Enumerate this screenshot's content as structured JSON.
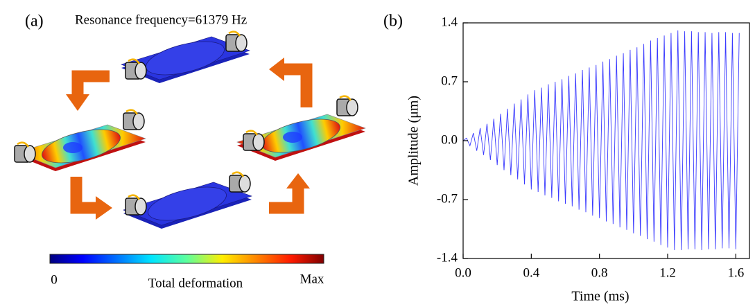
{
  "diagram": {
    "label": "(a)",
    "title": "Resonance frequency=61379 Hz",
    "colorbar": {
      "min_label": "0",
      "title": "Total deformation",
      "max_label": "Max"
    }
  },
  "chart_data": {
    "type": "line",
    "panel_label": "(b)",
    "x_label": "Time (ms)",
    "y_label": "Amplitude (μm)",
    "color": "#3a3aff",
    "xlim": [
      0,
      1.68
    ],
    "ylim": [
      -1.4,
      1.4
    ],
    "xticks": [
      {
        "value": 0,
        "label": "0.0"
      },
      0.4,
      0.8,
      1.2,
      1.6
    ],
    "yticks": [
      -1.4,
      -0.7,
      {
        "value": 0,
        "label": "0.0"
      },
      0.7,
      1.4
    ],
    "x": [
      0,
      0.02,
      0.04,
      0.06,
      0.08,
      0.1,
      0.12,
      0.14,
      0.16,
      0.18,
      0.2,
      0.22,
      0.24,
      0.26,
      0.28,
      0.3,
      0.32,
      0.34,
      0.36,
      0.38,
      0.4,
      0.42,
      0.44,
      0.46,
      0.48,
      0.5,
      0.52,
      0.54,
      0.56,
      0.58,
      0.6,
      0.62,
      0.64,
      0.66,
      0.68,
      0.7,
      0.72,
      0.74,
      0.76,
      0.78,
      0.8,
      0.82,
      0.84,
      0.86,
      0.88,
      0.9,
      0.92,
      0.94,
      0.96,
      0.98,
      1.0,
      1.02,
      1.04,
      1.06,
      1.08,
      1.1,
      1.12,
      1.14,
      1.16,
      1.18,
      1.2,
      1.22,
      1.24,
      1.26,
      1.28,
      1.3,
      1.32,
      1.34,
      1.36,
      1.38,
      1.4,
      1.42,
      1.44,
      1.46,
      1.48,
      1.5,
      1.52,
      1.54,
      1.56,
      1.58,
      1.6,
      1.62
    ],
    "values": [
      0,
      0.03,
      -0.06,
      0.09,
      -0.12,
      0.15,
      -0.17,
      0.2,
      -0.23,
      0.26,
      -0.29,
      0.32,
      -0.35,
      0.38,
      -0.41,
      0.44,
      -0.46,
      0.49,
      -0.52,
      0.55,
      -0.58,
      0.6,
      -0.61,
      0.63,
      -0.65,
      0.67,
      -0.68,
      0.7,
      -0.72,
      0.73,
      -0.75,
      0.77,
      -0.78,
      0.8,
      -0.82,
      0.84,
      -0.85,
      0.87,
      -0.89,
      0.9,
      -0.92,
      0.94,
      -0.96,
      0.97,
      -0.99,
      1.01,
      -1.03,
      1.04,
      -1.06,
      1.08,
      -1.1,
      1.11,
      -1.13,
      1.15,
      -1.17,
      1.19,
      -1.2,
      1.22,
      -1.24,
      1.25,
      -1.27,
      1.28,
      -1.3,
      1.31,
      -1.3,
      1.3,
      -1.29,
      1.3,
      -1.29,
      1.29,
      -1.3,
      1.29,
      -1.29,
      1.28,
      -1.29,
      1.29,
      -1.28,
      1.29,
      -1.28,
      1.28,
      -1.29,
      1.28
    ]
  }
}
